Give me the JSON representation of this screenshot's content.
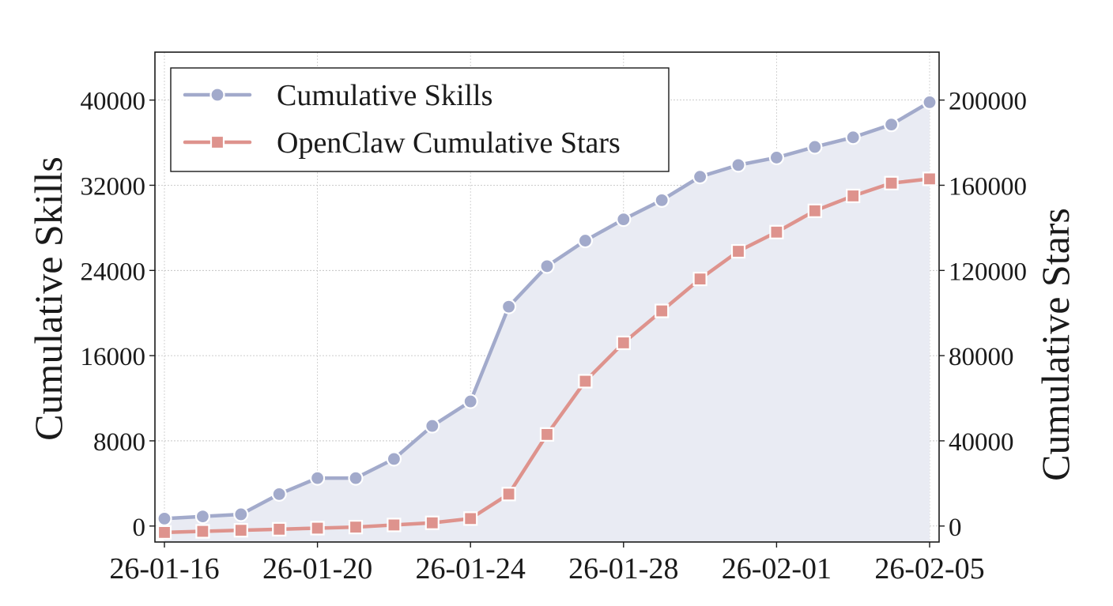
{
  "chart_data": {
    "type": "line",
    "x_dates": [
      "26-01-16",
      "26-01-17",
      "26-01-18",
      "26-01-19",
      "26-01-20",
      "26-01-21",
      "26-01-22",
      "26-01-23",
      "26-01-24",
      "26-01-25",
      "26-01-26",
      "26-01-27",
      "26-01-28",
      "26-01-29",
      "26-01-30",
      "26-01-31",
      "26-02-01",
      "26-02-02",
      "26-02-03",
      "26-02-04",
      "26-02-05"
    ],
    "x_ticks": [
      "26-01-16",
      "26-01-20",
      "26-01-24",
      "26-01-28",
      "26-02-01",
      "26-02-05"
    ],
    "ylabel_left": "Cumulative Skills",
    "ylabel_right": "Cumulative Stars",
    "ylim_left": [
      -1500,
      44500
    ],
    "ylim_right": [
      -7500,
      222500
    ],
    "yticks_left": [
      "0",
      "8000",
      "16000",
      "24000",
      "32000",
      "40000"
    ],
    "yticks_right": [
      "0",
      "40000",
      "80000",
      "120000",
      "160000",
      "200000"
    ],
    "grid": true,
    "legend_position": "top-left",
    "series": [
      {
        "name": "Cumulative Skills",
        "axis": "left",
        "marker": "circle",
        "color": "#a2aacb",
        "fill_color": "#e9ebf3",
        "values": [
          700,
          900,
          1100,
          3000,
          4500,
          4500,
          6300,
          9400,
          11700,
          20600,
          24400,
          26800,
          28800,
          30600,
          32800,
          33900,
          34600,
          35600,
          36500,
          37700,
          39800
        ]
      },
      {
        "name": "OpenClaw Cumulative Stars",
        "axis": "right",
        "marker": "square",
        "color": "#de938d",
        "values": [
          -3000,
          -2500,
          -2000,
          -1500,
          -1000,
          -500,
          500,
          1500,
          3500,
          15000,
          43000,
          68000,
          86000,
          101000,
          116000,
          129000,
          138000,
          148000,
          155000,
          161000,
          163000
        ]
      }
    ]
  }
}
